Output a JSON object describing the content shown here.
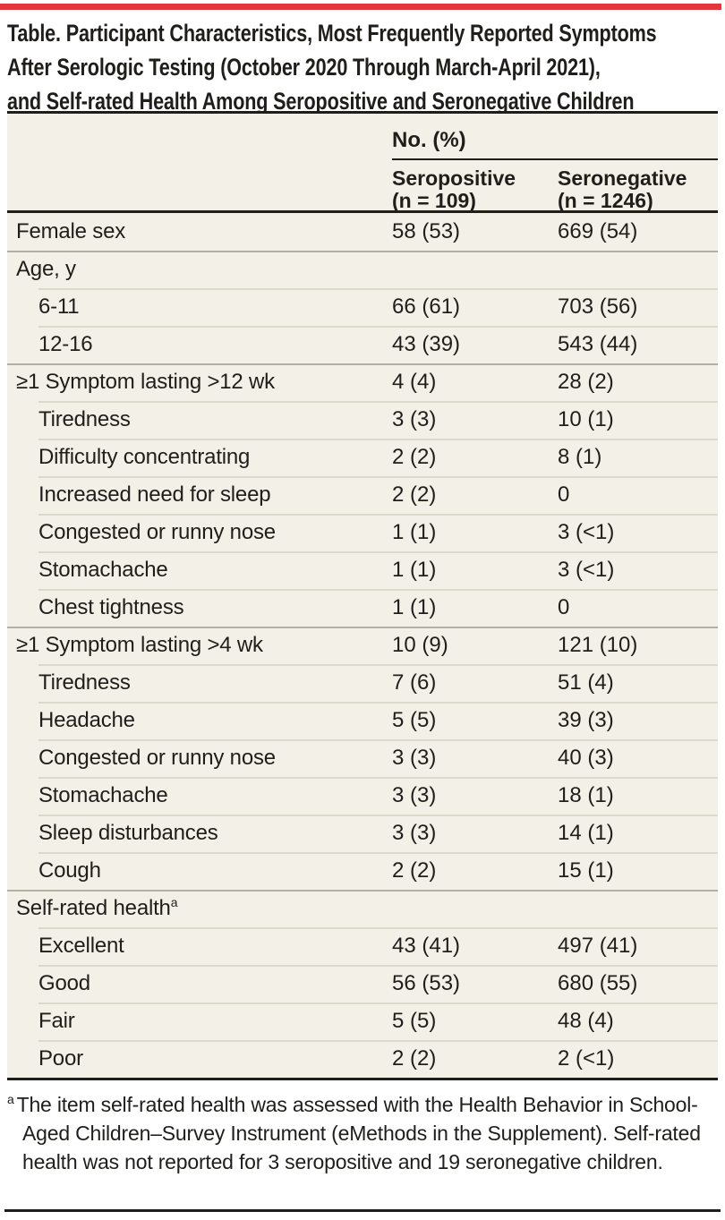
{
  "colors": {
    "accent_red": "#e4353c",
    "table_background": "#f3f1e7",
    "rule_dark": "#1f1e1b"
  },
  "title_lines": [
    "Table. Participant Characteristics, Most Frequently Reported Symptoms",
    "After Serologic Testing (October 2020 Through March-April 2021),",
    "and Self-rated Health Among Seropositive and Seronegative Children"
  ],
  "table": {
    "group_header": "No. (%)",
    "columns": [
      {
        "line1": "Seropositive",
        "line2": "(n = 109)"
      },
      {
        "line1": "Seronegative",
        "line2": "(n = 1246)"
      }
    ],
    "rows": [
      {
        "label": "Female sex",
        "seropositive": "58 (53)",
        "seronegative": "669 (54)",
        "indent": false,
        "sep": "none"
      },
      {
        "label": "Age, y",
        "seropositive": "",
        "seronegative": "",
        "indent": false,
        "sep": "major"
      },
      {
        "label": "6-11",
        "seropositive": "66 (61)",
        "seronegative": "703 (56)",
        "indent": true,
        "sep": "minor"
      },
      {
        "label": "12-16",
        "seropositive": "43 (39)",
        "seronegative": "543 (44)",
        "indent": true,
        "sep": "minor"
      },
      {
        "label": "≥1 Symptom lasting >12 wk",
        "seropositive": "4 (4)",
        "seronegative": "28 (2)",
        "indent": false,
        "sep": "major"
      },
      {
        "label": "Tiredness",
        "seropositive": "3 (3)",
        "seronegative": "10 (1)",
        "indent": true,
        "sep": "minor"
      },
      {
        "label": "Difficulty concentrating",
        "seropositive": "2 (2)",
        "seronegative": "8 (1)",
        "indent": true,
        "sep": "minor"
      },
      {
        "label": "Increased need for sleep",
        "seropositive": "2 (2)",
        "seronegative": "0",
        "indent": true,
        "sep": "minor"
      },
      {
        "label": "Congested or runny nose",
        "seropositive": "1 (1)",
        "seronegative": "3 (<1)",
        "indent": true,
        "sep": "minor"
      },
      {
        "label": "Stomachache",
        "seropositive": "1 (1)",
        "seronegative": "3 (<1)",
        "indent": true,
        "sep": "minor"
      },
      {
        "label": "Chest tightness",
        "seropositive": "1 (1)",
        "seronegative": "0",
        "indent": true,
        "sep": "minor"
      },
      {
        "label": "≥1 Symptom lasting >4 wk",
        "seropositive": "10 (9)",
        "seronegative": "121 (10)",
        "indent": false,
        "sep": "major"
      },
      {
        "label": "Tiredness",
        "seropositive": "7 (6)",
        "seronegative": "51 (4)",
        "indent": true,
        "sep": "minor"
      },
      {
        "label": "Headache",
        "seropositive": "5 (5)",
        "seronegative": "39 (3)",
        "indent": true,
        "sep": "minor"
      },
      {
        "label": "Congested or runny nose",
        "seropositive": "3 (3)",
        "seronegative": "40 (3)",
        "indent": true,
        "sep": "minor"
      },
      {
        "label": "Stomachache",
        "seropositive": "3 (3)",
        "seronegative": "18 (1)",
        "indent": true,
        "sep": "minor"
      },
      {
        "label": "Sleep disturbances",
        "seropositive": "3 (3)",
        "seronegative": "14 (1)",
        "indent": true,
        "sep": "minor"
      },
      {
        "label": "Cough",
        "seropositive": "2 (2)",
        "seronegative": "15 (1)",
        "indent": true,
        "sep": "minor"
      },
      {
        "label": "Self-rated health",
        "sup": "a",
        "seropositive": "",
        "seronegative": "",
        "indent": false,
        "sep": "major"
      },
      {
        "label": "Excellent",
        "seropositive": "43 (41)",
        "seronegative": "497 (41)",
        "indent": true,
        "sep": "minor"
      },
      {
        "label": "Good",
        "seropositive": "56 (53)",
        "seronegative": "680 (55)",
        "indent": true,
        "sep": "minor"
      },
      {
        "label": "Fair",
        "seropositive": "5 (5)",
        "seronegative": "48 (4)",
        "indent": true,
        "sep": "minor"
      },
      {
        "label": "Poor",
        "seropositive": "2 (2)",
        "seronegative": "2 (<1)",
        "indent": true,
        "sep": "minor"
      }
    ]
  },
  "footnote": {
    "marker": "a",
    "text": "The item self-rated health was assessed with the Health Behavior in School-Aged Children–Survey Instrument (eMethods in the Supplement). Self-rated health was not reported for 3 seropositive and 19 seronegative children."
  }
}
